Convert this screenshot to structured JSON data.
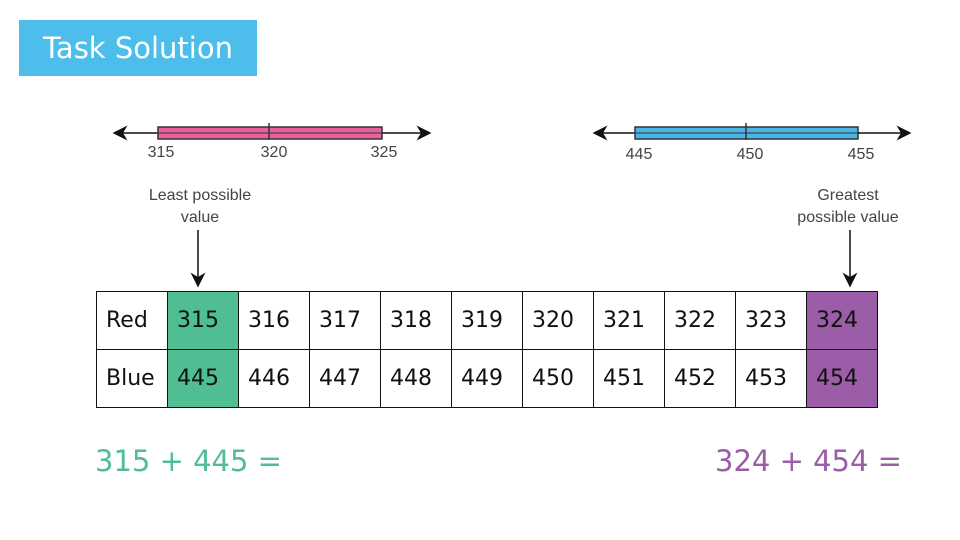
{
  "title": "Task Solution",
  "number_lines": [
    {
      "color": "#e8609f",
      "ticks": [
        "315",
        "320",
        "325"
      ]
    },
    {
      "color": "#4bb5e6",
      "ticks": [
        "445",
        "450",
        "455"
      ]
    }
  ],
  "annotations": {
    "least": "Least possible\nvalue",
    "greatest": "Greatest\npossible value"
  },
  "table": {
    "rows": [
      {
        "label": "Red",
        "values": [
          "315",
          "316",
          "317",
          "318",
          "319",
          "320",
          "321",
          "322",
          "323",
          "324"
        ]
      },
      {
        "label": "Blue",
        "values": [
          "445",
          "446",
          "447",
          "448",
          "449",
          "450",
          "451",
          "452",
          "453",
          "454"
        ]
      }
    ],
    "highlight_colors": {
      "least": "#4fbe93",
      "greatest": "#9b5ca8"
    }
  },
  "equations": {
    "least": "315 + 445 =",
    "greatest": "324 + 454 ="
  }
}
